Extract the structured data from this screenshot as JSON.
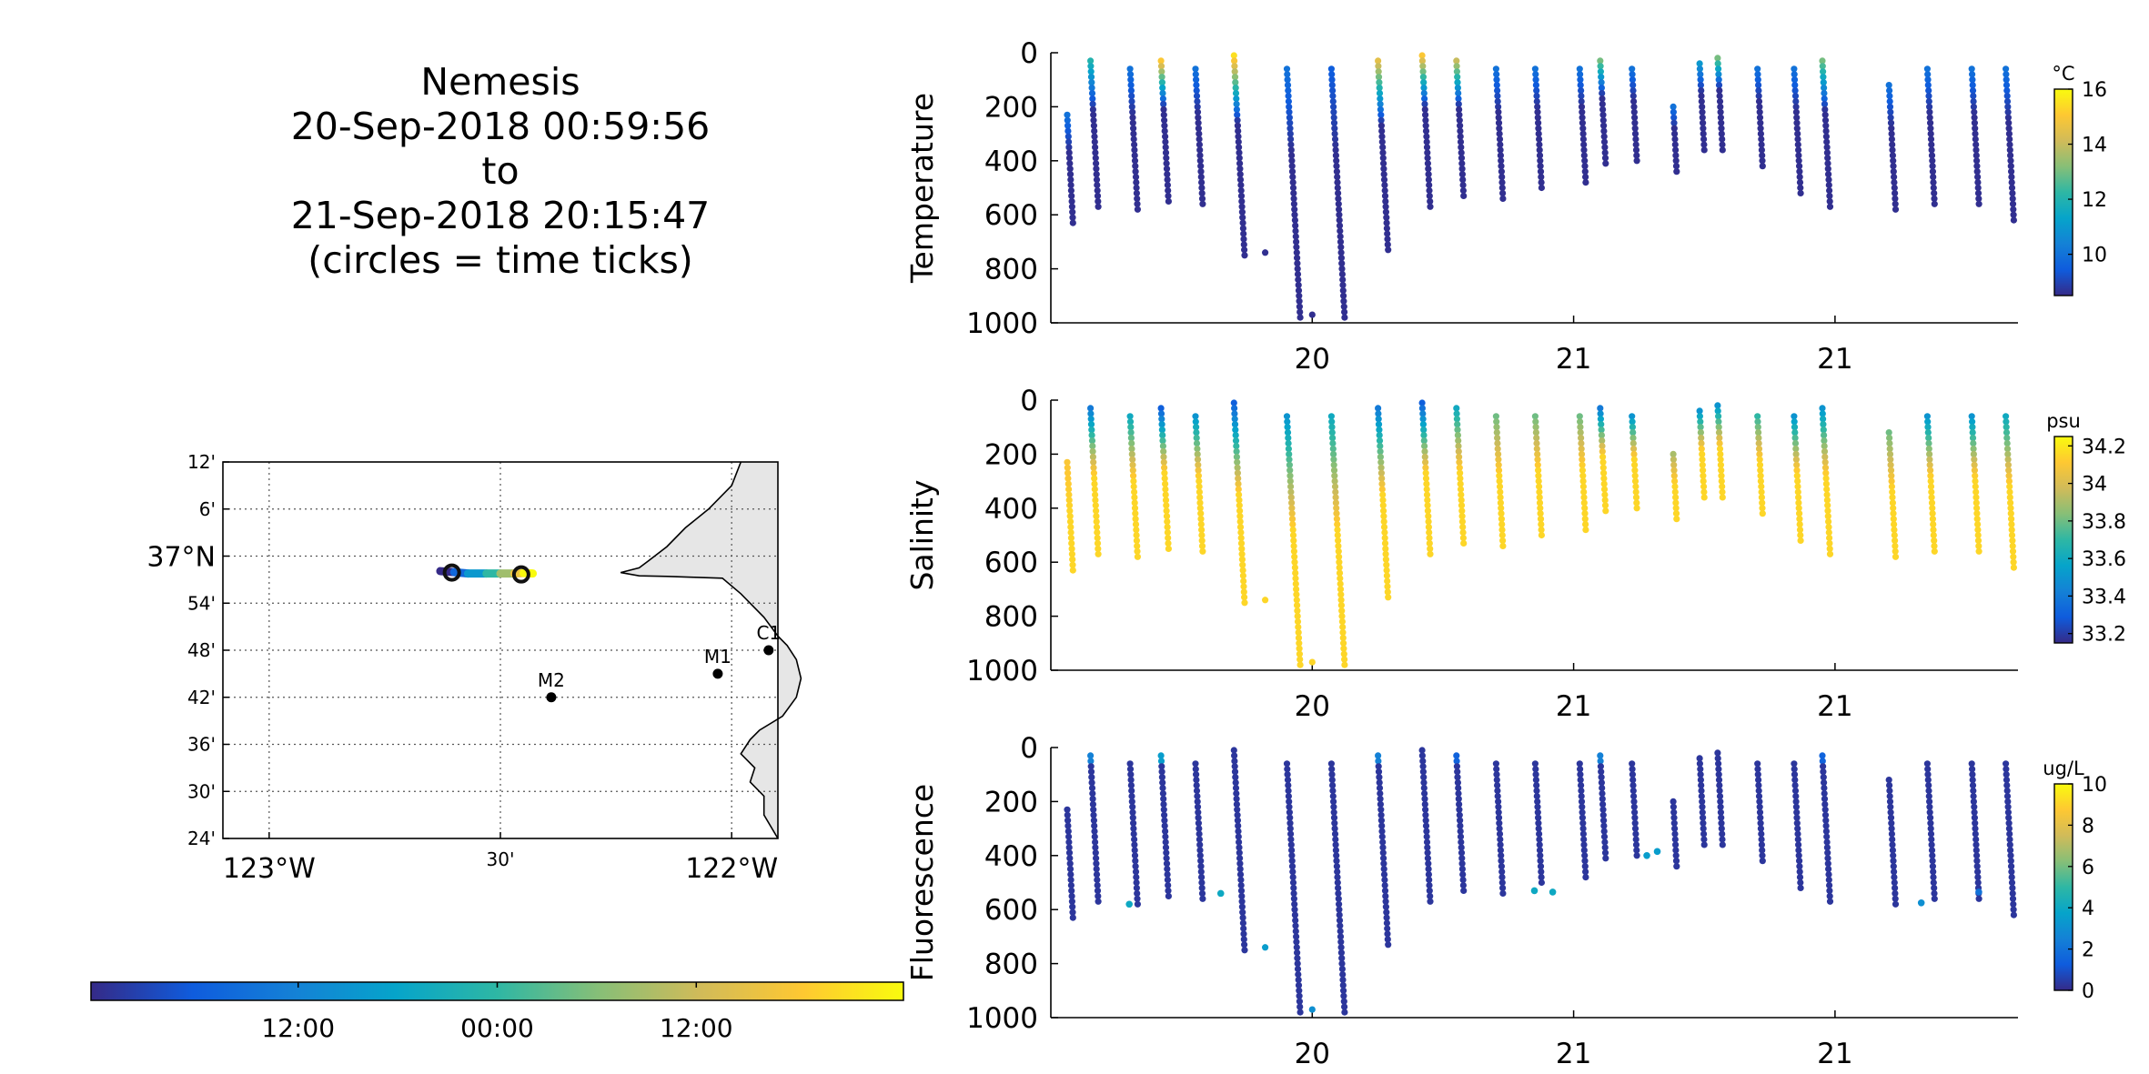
{
  "title": {
    "line1": "Nemesis",
    "line2": "20-Sep-2018 00:59:56",
    "line3": "to",
    "line4": "21-Sep-2018 20:15:47",
    "line5": "(circles = time ticks)"
  },
  "chart_data": [
    {
      "type": "map",
      "lat_ticks": [
        "12'",
        "6'",
        "37°N",
        "54'",
        "48'",
        "42'",
        "36'",
        "30'",
        "24'"
      ],
      "lon_ticks": [
        "123°W",
        "30'",
        "122°W"
      ],
      "lat_range": [
        36.4,
        37.2
      ],
      "lon_range": [
        -123.1,
        -121.9
      ],
      "grid": true,
      "stations": [
        {
          "name": "M2",
          "lat": 36.7,
          "lon": -122.39
        },
        {
          "name": "M1",
          "lat": 36.75,
          "lon": -122.03
        },
        {
          "name": "C1",
          "lat": 36.8,
          "lon": -121.92
        }
      ],
      "track": {
        "lat": [
          36.968,
          36.966,
          36.963,
          36.963,
          36.963,
          36.963,
          36.964,
          36.963
        ],
        "lon": [
          -122.63,
          -122.6,
          -122.57,
          -122.53,
          -122.5,
          -122.47,
          -122.45,
          -122.43
        ]
      },
      "time_ticks": [
        {
          "lat": 36.965,
          "lon": -122.605
        },
        {
          "lat": 36.961,
          "lon": -122.455
        }
      ]
    },
    {
      "type": "colorbar",
      "name": "time",
      "ticks": [
        "12:00",
        "00:00",
        "12:00"
      ],
      "colors": [
        "#352a87",
        "#0f5cdd",
        "#1481d6",
        "#06a4ca",
        "#2eb7a4",
        "#87bf77",
        "#d1bb59",
        "#fec832",
        "#f9fb0e"
      ]
    },
    {
      "type": "scatter",
      "ylabel": "Temperature",
      "xticks": [
        "20",
        "21",
        "21"
      ],
      "yticks": [
        "0",
        "200",
        "400",
        "600",
        "800",
        "1000"
      ],
      "ylim": [
        0,
        1000
      ],
      "y_reversed": true,
      "colorbar": {
        "unit": "°C",
        "ticks": [
          "16",
          "14",
          "12",
          "10"
        ],
        "range": [
          8.5,
          16
        ]
      },
      "profiles": [
        {
          "x": 0.05,
          "top": 230,
          "bottom": 640,
          "surface_value": 10
        },
        {
          "x": 0.15,
          "top": 30,
          "bottom": 580,
          "surface_value": 12
        },
        {
          "x": 0.3,
          "top": 60,
          "bottom": 580,
          "surface_value": 10
        },
        {
          "x": 0.42,
          "top": 30,
          "bottom": 550,
          "surface_value": 15
        },
        {
          "x": 0.55,
          "top": 60,
          "bottom": 560,
          "surface_value": 10
        },
        {
          "x": 0.7,
          "top": 10,
          "bottom": 750,
          "surface_value": 15.5
        },
        {
          "x": 0.9,
          "top": 60,
          "bottom": 980,
          "surface_value": 10
        },
        {
          "x": 1.07,
          "top": 60,
          "bottom": 980,
          "surface_value": 9.5
        },
        {
          "x": 1.25,
          "top": 30,
          "bottom": 730,
          "surface_value": 14.5
        },
        {
          "x": 1.42,
          "top": 10,
          "bottom": 580,
          "surface_value": 15
        },
        {
          "x": 1.55,
          "top": 30,
          "bottom": 540,
          "surface_value": 14
        },
        {
          "x": 1.7,
          "top": 60,
          "bottom": 540,
          "surface_value": 10
        },
        {
          "x": 1.85,
          "top": 60,
          "bottom": 500,
          "surface_value": 10
        },
        {
          "x": 2.02,
          "top": 60,
          "bottom": 480,
          "surface_value": 10
        },
        {
          "x": 2.1,
          "top": 30,
          "bottom": 420,
          "surface_value": 13
        },
        {
          "x": 2.22,
          "top": 60,
          "bottom": 400,
          "surface_value": 10
        },
        {
          "x": 2.37,
          "top": 200,
          "bottom": 440,
          "surface_value": 10
        },
        {
          "x": 2.48,
          "top": 40,
          "bottom": 360,
          "surface_value": 11
        },
        {
          "x": 2.55,
          "top": 20,
          "bottom": 360,
          "surface_value": 13
        },
        {
          "x": 2.7,
          "top": 60,
          "bottom": 420,
          "surface_value": 10
        },
        {
          "x": 2.84,
          "top": 60,
          "bottom": 520,
          "surface_value": 10
        },
        {
          "x": 2.95,
          "top": 30,
          "bottom": 580,
          "surface_value": 13
        },
        {
          "x": 3.2,
          "top": 120,
          "bottom": 580,
          "surface_value": 10
        },
        {
          "x": 3.35,
          "top": 60,
          "bottom": 560,
          "surface_value": 10
        },
        {
          "x": 3.52,
          "top": 60,
          "bottom": 560,
          "surface_value": 10
        },
        {
          "x": 3.65,
          "top": 60,
          "bottom": 620,
          "surface_value": 10
        }
      ],
      "isolated_points": [
        {
          "x": 0.82,
          "y": 740
        },
        {
          "x": 1.0,
          "y": 970
        }
      ]
    },
    {
      "type": "scatter",
      "ylabel": "Salinity",
      "xticks": [
        "20",
        "21",
        "21"
      ],
      "yticks": [
        "0",
        "200",
        "400",
        "600",
        "800",
        "1000"
      ],
      "ylim": [
        0,
        1000
      ],
      "y_reversed": true,
      "colorbar": {
        "unit": "psu",
        "ticks": [
          "34.2",
          "34",
          "33.8",
          "33.6",
          "33.4",
          "33.2"
        ],
        "range": [
          33.15,
          34.25
        ]
      },
      "profiles": [
        {
          "x": 0.05,
          "top": 230,
          "bottom": 640,
          "surface_value": 34.1
        },
        {
          "x": 0.15,
          "top": 30,
          "bottom": 580,
          "surface_value": 33.4
        },
        {
          "x": 0.3,
          "top": 60,
          "bottom": 580,
          "surface_value": 33.6
        },
        {
          "x": 0.42,
          "top": 30,
          "bottom": 550,
          "surface_value": 33.3
        },
        {
          "x": 0.55,
          "top": 60,
          "bottom": 560,
          "surface_value": 33.5
        },
        {
          "x": 0.7,
          "top": 10,
          "bottom": 750,
          "surface_value": 33.3
        },
        {
          "x": 0.9,
          "top": 60,
          "bottom": 980,
          "surface_value": 33.5
        },
        {
          "x": 1.07,
          "top": 60,
          "bottom": 980,
          "surface_value": 33.6
        },
        {
          "x": 1.25,
          "top": 30,
          "bottom": 730,
          "surface_value": 33.4
        },
        {
          "x": 1.42,
          "top": 10,
          "bottom": 580,
          "surface_value": 33.3
        },
        {
          "x": 1.55,
          "top": 30,
          "bottom": 540,
          "surface_value": 33.6
        },
        {
          "x": 1.7,
          "top": 60,
          "bottom": 540,
          "surface_value": 33.8
        },
        {
          "x": 1.85,
          "top": 60,
          "bottom": 500,
          "surface_value": 33.8
        },
        {
          "x": 2.02,
          "top": 60,
          "bottom": 480,
          "surface_value": 33.8
        },
        {
          "x": 2.1,
          "top": 30,
          "bottom": 420,
          "surface_value": 33.4
        },
        {
          "x": 2.22,
          "top": 60,
          "bottom": 400,
          "surface_value": 33.5
        },
        {
          "x": 2.37,
          "top": 200,
          "bottom": 440,
          "surface_value": 33.9
        },
        {
          "x": 2.48,
          "top": 40,
          "bottom": 360,
          "surface_value": 33.5
        },
        {
          "x": 2.55,
          "top": 20,
          "bottom": 360,
          "surface_value": 33.5
        },
        {
          "x": 2.7,
          "top": 60,
          "bottom": 420,
          "surface_value": 33.7
        },
        {
          "x": 2.84,
          "top": 60,
          "bottom": 520,
          "surface_value": 33.5
        },
        {
          "x": 2.95,
          "top": 30,
          "bottom": 580,
          "surface_value": 33.5
        },
        {
          "x": 3.2,
          "top": 120,
          "bottom": 580,
          "surface_value": 33.8
        },
        {
          "x": 3.35,
          "top": 60,
          "bottom": 560,
          "surface_value": 33.5
        },
        {
          "x": 3.52,
          "top": 60,
          "bottom": 560,
          "surface_value": 33.5
        },
        {
          "x": 3.65,
          "top": 60,
          "bottom": 620,
          "surface_value": 33.6
        }
      ],
      "isolated_points": [
        {
          "x": 0.82,
          "y": 740
        },
        {
          "x": 1.0,
          "y": 970
        }
      ]
    },
    {
      "type": "scatter",
      "ylabel": "Fluorescence",
      "xticks": [
        "20",
        "21",
        "21"
      ],
      "yticks": [
        "0",
        "200",
        "400",
        "600",
        "800",
        "1000"
      ],
      "ylim": [
        0,
        1000
      ],
      "y_reversed": true,
      "colorbar": {
        "unit": "ug/L",
        "ticks": [
          "10",
          "8",
          "6",
          "4",
          "2",
          "0"
        ],
        "range": [
          0,
          10
        ]
      },
      "profiles": [
        {
          "x": 0.05,
          "top": 230,
          "bottom": 640,
          "surface_value": 0.3
        },
        {
          "x": 0.15,
          "top": 30,
          "bottom": 580,
          "surface_value": 2.5
        },
        {
          "x": 0.3,
          "top": 60,
          "bottom": 580,
          "surface_value": 0.3
        },
        {
          "x": 0.42,
          "top": 30,
          "bottom": 550,
          "surface_value": 3.5
        },
        {
          "x": 0.55,
          "top": 60,
          "bottom": 560,
          "surface_value": 0.3
        },
        {
          "x": 0.7,
          "top": 10,
          "bottom": 750,
          "surface_value": 0.3
        },
        {
          "x": 0.9,
          "top": 60,
          "bottom": 980,
          "surface_value": 0.3
        },
        {
          "x": 1.07,
          "top": 60,
          "bottom": 980,
          "surface_value": 0.3
        },
        {
          "x": 1.25,
          "top": 30,
          "bottom": 730,
          "surface_value": 2.5
        },
        {
          "x": 1.42,
          "top": 10,
          "bottom": 580,
          "surface_value": 0.3
        },
        {
          "x": 1.55,
          "top": 30,
          "bottom": 540,
          "surface_value": 1.5
        },
        {
          "x": 1.7,
          "top": 60,
          "bottom": 540,
          "surface_value": 0.3
        },
        {
          "x": 1.85,
          "top": 60,
          "bottom": 500,
          "surface_value": 0.3
        },
        {
          "x": 2.02,
          "top": 60,
          "bottom": 480,
          "surface_value": 0.3
        },
        {
          "x": 2.1,
          "top": 30,
          "bottom": 420,
          "surface_value": 2.5
        },
        {
          "x": 2.22,
          "top": 60,
          "bottom": 400,
          "surface_value": 0.3
        },
        {
          "x": 2.37,
          "top": 200,
          "bottom": 440,
          "surface_value": 0.3
        },
        {
          "x": 2.48,
          "top": 40,
          "bottom": 360,
          "surface_value": 0.3
        },
        {
          "x": 2.55,
          "top": 20,
          "bottom": 360,
          "surface_value": 0.3
        },
        {
          "x": 2.7,
          "top": 60,
          "bottom": 420,
          "surface_value": 0.3
        },
        {
          "x": 2.84,
          "top": 60,
          "bottom": 520,
          "surface_value": 0.3
        },
        {
          "x": 2.95,
          "top": 30,
          "bottom": 580,
          "surface_value": 1.5
        },
        {
          "x": 3.2,
          "top": 120,
          "bottom": 580,
          "surface_value": 0.3
        },
        {
          "x": 3.35,
          "top": 60,
          "bottom": 560,
          "surface_value": 0.3
        },
        {
          "x": 3.52,
          "top": 60,
          "bottom": 560,
          "surface_value": 0.3
        },
        {
          "x": 3.65,
          "top": 60,
          "bottom": 620,
          "surface_value": 0.3
        }
      ],
      "isolated_points": [
        {
          "x": 0.82,
          "y": 740,
          "value": 3.5
        },
        {
          "x": 1.0,
          "y": 970,
          "value": 3
        }
      ],
      "highlight_points": [
        {
          "x": 0.3,
          "y": 580,
          "value": 4
        },
        {
          "x": 0.65,
          "y": 540,
          "value": 4
        },
        {
          "x": 1.85,
          "y": 530,
          "value": 4
        },
        {
          "x": 1.92,
          "y": 535,
          "value": 4
        },
        {
          "x": 2.28,
          "y": 400,
          "value": 3.5
        },
        {
          "x": 2.32,
          "y": 385,
          "value": 3.5
        },
        {
          "x": 3.33,
          "y": 575,
          "value": 3
        },
        {
          "x": 3.55,
          "y": 535,
          "value": 2
        }
      ]
    }
  ]
}
